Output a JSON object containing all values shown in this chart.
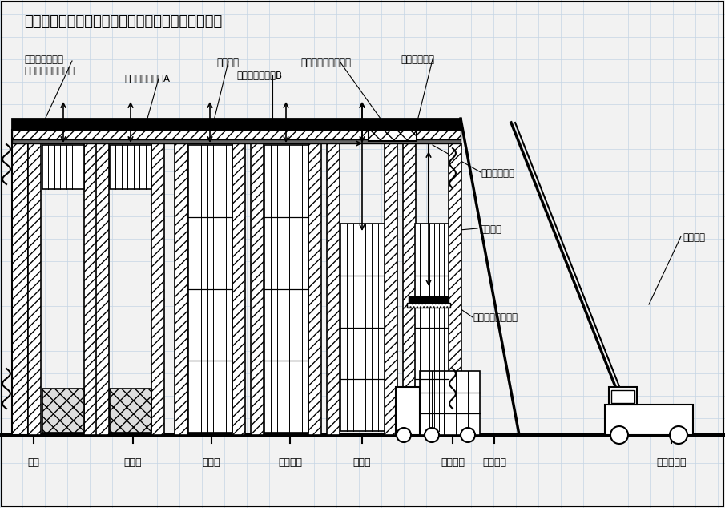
{
  "title": "立体コンテナ格納庫型津波避難タワーの断面構成図",
  "bg_color": "#f2f2f2",
  "labels": {
    "ground_left": "地面",
    "door": "閉鎖扉",
    "michinoeki": "道の駅",
    "konbini": "コンビニ",
    "clinic": "診療所",
    "truck": "トラック",
    "container_label": "コンテナ",
    "crane_car": "クレーン車",
    "container_ship_l1": "コンテナ船式の",
    "container_ship_l2": "コンテナ格納機構部",
    "container_house_a": "コンテナハウスA",
    "suihei": "水平方向",
    "slide_rail": "水平スライドレール",
    "tower_roof": "タワーの屋根",
    "container_house_b": "コンテナハウスB",
    "maki_age": "巻き上げ装置",
    "suichoku": "垂直方向",
    "datchaku": "コンテナ脱着装置",
    "crane": "クレーン"
  },
  "grid_color": "#c5d5e5",
  "grid_step": 28
}
